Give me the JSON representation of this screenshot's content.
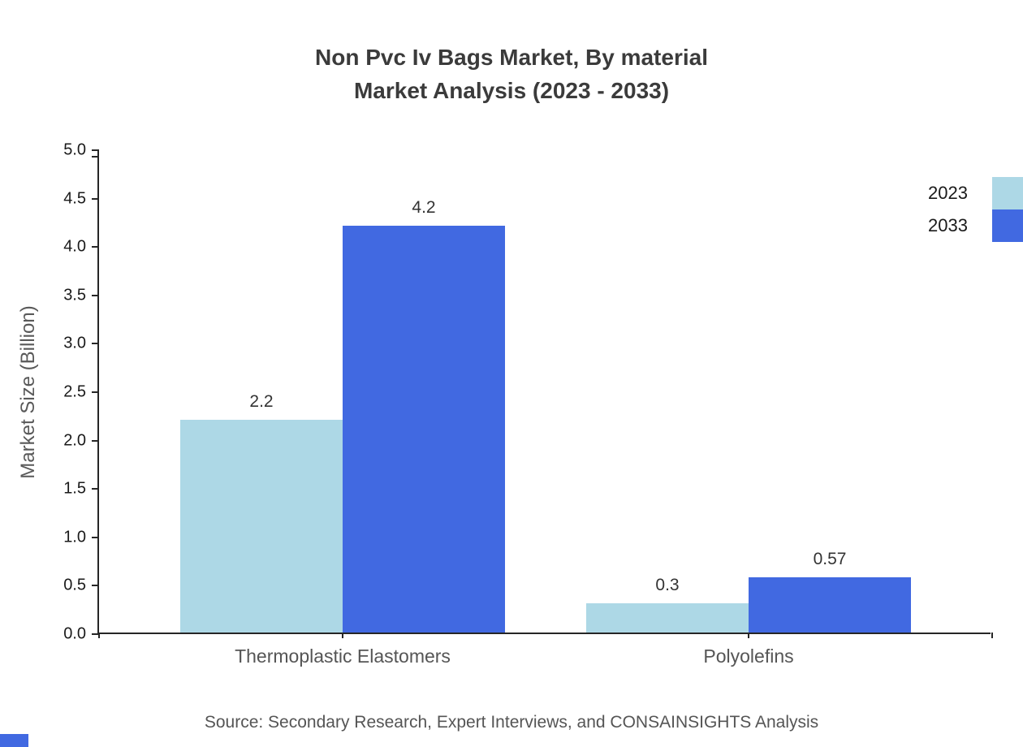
{
  "title": {
    "line1": "Non Pvc Iv Bags Market, By material",
    "line2": "Market Analysis (2023 - 2033)"
  },
  "source": "Source: Secondary Research, Expert Interviews, and CONSAINSIGHTS Analysis",
  "colors": {
    "series_2023": "#ADD8E6",
    "series_2033": "#4169E1",
    "axis": "#262626",
    "muted_text": "#555555",
    "title_text": "#3b3b3b"
  },
  "chart_data": {
    "type": "bar",
    "title": "Non Pvc Iv Bags Market, By material — Market Analysis (2023 - 2033)",
    "categories": [
      "Thermoplastic Elastomers",
      "Polyolefins"
    ],
    "series": [
      {
        "name": "2023",
        "color": "#ADD8E6",
        "values": [
          2.2,
          0.3
        ],
        "labels": [
          "2.2",
          "0.3"
        ]
      },
      {
        "name": "2033",
        "color": "#4169E1",
        "values": [
          4.2,
          0.57
        ],
        "labels": [
          "4.2",
          "0.57"
        ]
      }
    ],
    "xlabel": "",
    "ylabel": "Market Size (Billion)",
    "ylim": [
      0,
      5
    ],
    "ytick_step": 0.5,
    "grid": false,
    "legend_position": "top-right"
  }
}
